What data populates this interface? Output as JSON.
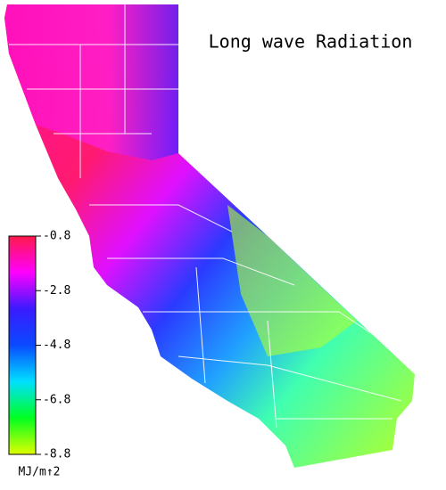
{
  "chart_data": {
    "type": "colormap",
    "title": "Long wave Radiation",
    "colorbar": {
      "label": "MJ/m↑2",
      "lim": [
        -0.8,
        -8.8
      ],
      "ticks": [
        -0.8,
        -2.8,
        -4.8,
        -6.8,
        -8.8
      ],
      "colors": [
        "#ff1a4a",
        "#ff00ff",
        "#3a1aff",
        "#0a4aff",
        "#00e0ff",
        "#00ff20",
        "#e0ff00"
      ]
    }
  }
}
